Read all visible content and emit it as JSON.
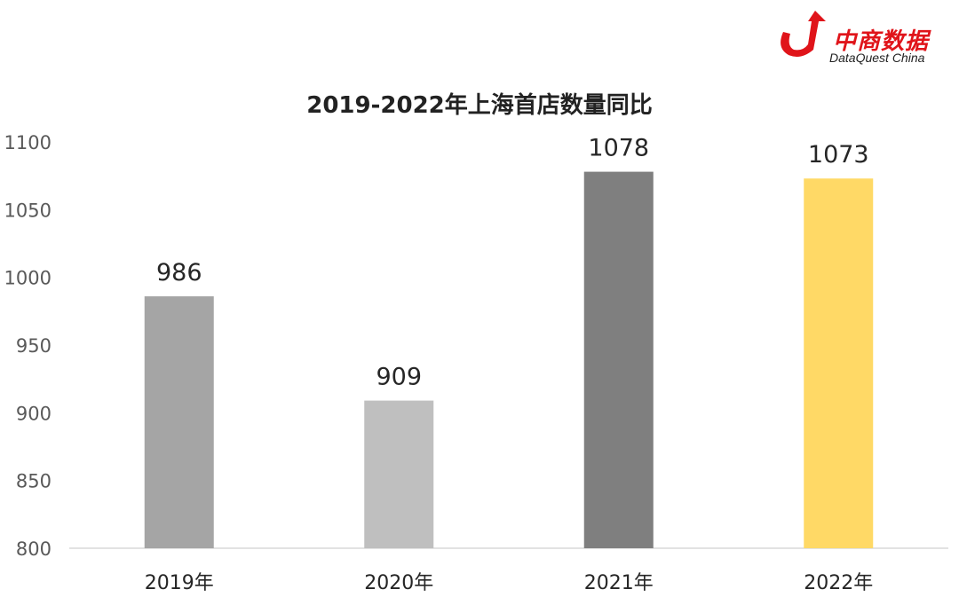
{
  "logo": {
    "name_cn": "中商数据",
    "name_en": "DataQuest China",
    "brand_color": "#e0141a"
  },
  "chart_data": {
    "type": "bar",
    "title": "2019-2022年上海首店数量同比",
    "xlabel": "",
    "ylabel": "",
    "categories": [
      "2019年",
      "2020年",
      "2021年",
      "2022年"
    ],
    "values": [
      986,
      909,
      1078,
      1073
    ],
    "bar_colors": [
      "#a5a5a5",
      "#bfbfbf",
      "#7f7f7f",
      "#ffd966"
    ],
    "ylim": [
      800,
      1100
    ],
    "yticks": [
      800,
      850,
      900,
      950,
      1000,
      1050,
      1100
    ],
    "grid": false,
    "legend": "none",
    "data_labels": true
  }
}
